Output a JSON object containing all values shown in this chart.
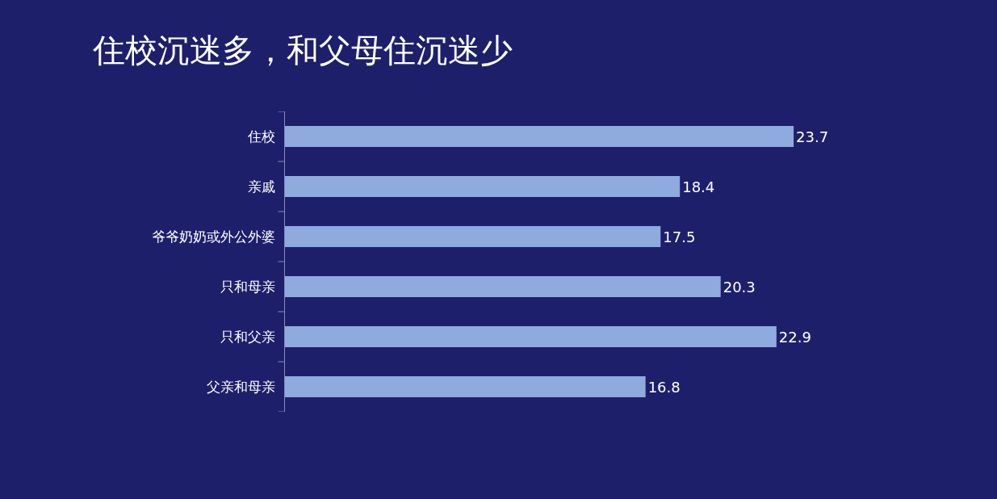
{
  "chart_data": {
    "type": "bar",
    "orientation": "horizontal",
    "title": "住校沉迷多，和父母住沉迷少",
    "categories": [
      "住校",
      "亲戚",
      "爷爷奶奶或外公外婆",
      "只和母亲",
      "只和父亲",
      "父亲和母亲"
    ],
    "values": [
      23.7,
      18.4,
      17.5,
      20.3,
      22.9,
      16.8
    ],
    "color": "#8faadc",
    "data_labels": true
  }
}
